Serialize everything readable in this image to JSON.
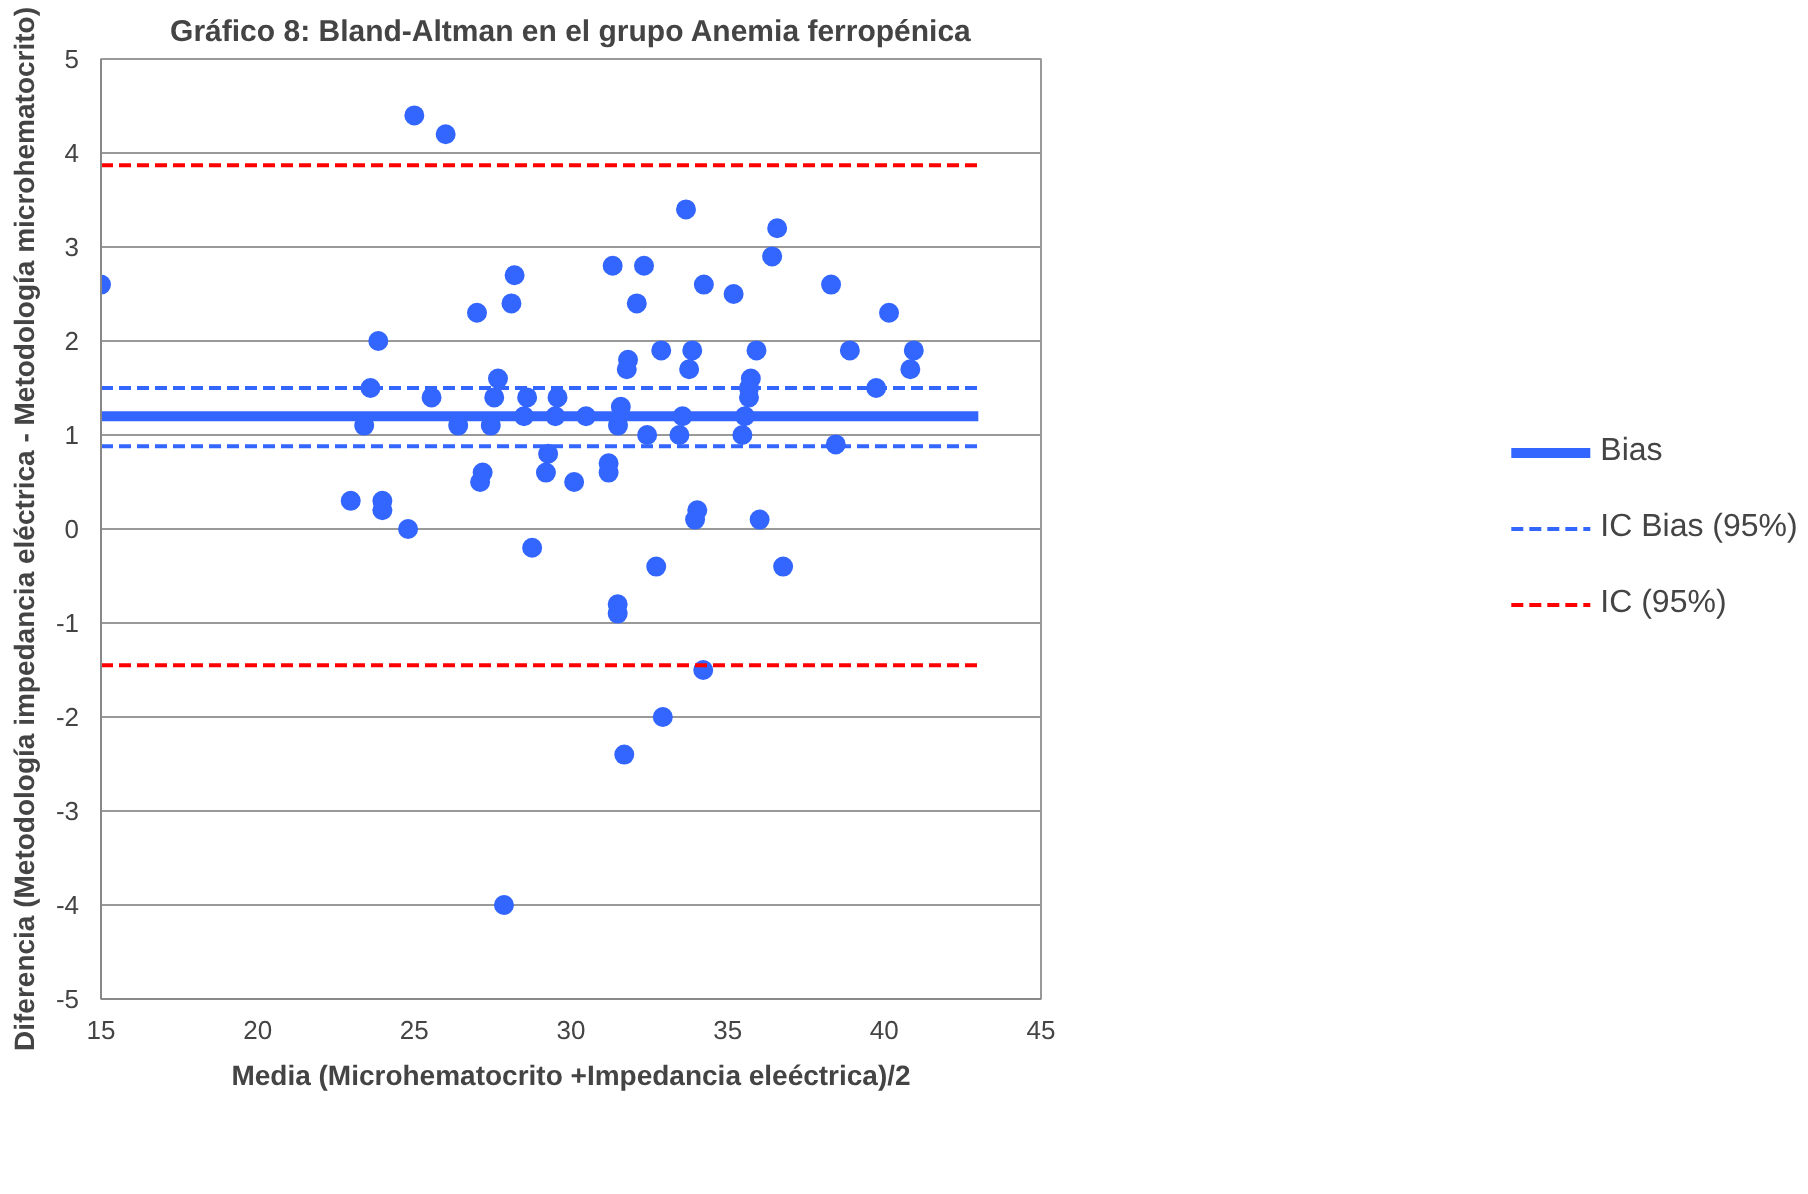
{
  "chart_data": {
    "type": "scatter",
    "title": "Gráfico 8: Bland-Altman en el grupo Anemia ferropénica",
    "xlabel": "Media (Microhematocrito +Impedancia eleéctrica)/2",
    "ylabel": "Diferencia (Metodología impedancia eléctrica - Metodología microhematocrito)",
    "xlim": [
      15,
      45
    ],
    "xticks": [
      15,
      20,
      25,
      30,
      35,
      40,
      45
    ],
    "ylim": [
      -5,
      5
    ],
    "yticks": [
      -5,
      -4,
      -3,
      -2,
      -1,
      0,
      1,
      2,
      3,
      4,
      5
    ],
    "grid": "y",
    "legend": "right",
    "series": [
      {
        "color": "#3366ff",
        "marker": "circle",
        "x": [
          15.0,
          25.0,
          26.0,
          27.0,
          28.2,
          28.1,
          23.85,
          23.6,
          25.55,
          27.67,
          27.55,
          28.6,
          29.57,
          23.4,
          26.4,
          27.44,
          28.5,
          29.5,
          29.27,
          29.2,
          27.18,
          27.1,
          30.1,
          22.97,
          23.98,
          23.98,
          24.8,
          28.76,
          33.67,
          36.58,
          36.42,
          31.33,
          32.33,
          34.24,
          35.19,
          38.3,
          32.1,
          40.15,
          32.88,
          33.87,
          35.92,
          38.9,
          40.94,
          31.82,
          31.78,
          33.77,
          40.83,
          35.74,
          35.68,
          39.74,
          35.68,
          31.59,
          30.48,
          31.5,
          33.56,
          35.55,
          32.43,
          33.46,
          35.47,
          38.45,
          31.2,
          31.2,
          34.03,
          33.96,
          36.02,
          32.72,
          36.77,
          31.49,
          31.49,
          34.22,
          32.93,
          31.7,
          27.86
        ],
        "values": [
          2.6,
          4.4,
          4.2,
          2.3,
          2.7,
          2.4,
          2.0,
          1.5,
          1.4,
          1.6,
          1.4,
          1.4,
          1.4,
          1.1,
          1.1,
          1.1,
          1.2,
          1.2,
          0.8,
          0.6,
          0.6,
          0.5,
          0.5,
          0.3,
          0.3,
          0.2,
          0.0,
          -0.2,
          3.4,
          3.2,
          2.9,
          2.8,
          2.8,
          2.6,
          2.5,
          2.6,
          2.4,
          2.3,
          1.9,
          1.9,
          1.9,
          1.9,
          1.9,
          1.8,
          1.7,
          1.7,
          1.7,
          1.6,
          1.5,
          1.5,
          1.4,
          1.3,
          1.2,
          1.1,
          1.2,
          1.2,
          1.0,
          1.0,
          1.0,
          0.9,
          0.7,
          0.6,
          0.2,
          0.1,
          0.1,
          -0.4,
          -0.4,
          -0.8,
          -0.9,
          -1.5,
          -2.0,
          -2.4,
          -4.0
        ]
      },
      {
        "type": "line",
        "name": "Bias",
        "color": "#3366ff",
        "line_style": "solid",
        "x": [
          15,
          43
        ],
        "values": [
          1.2,
          1.2
        ]
      },
      {
        "type": "line",
        "name": "IC Bias (95%)",
        "color": "#3366ff",
        "line_style": "dashed",
        "x": [
          15,
          43
        ],
        "values": [
          1.5,
          1.5
        ]
      },
      {
        "type": "line",
        "color": "#3366ff",
        "line_style": "dashed",
        "x": [
          15,
          43
        ],
        "values": [
          0.88,
          0.88
        ]
      },
      {
        "type": "line",
        "name": "IC (95%)",
        "color": "#ff0000",
        "line_style": "dashed",
        "x": [
          15,
          43
        ],
        "values": [
          3.87,
          3.87
        ]
      },
      {
        "type": "line",
        "color": "#ff0000",
        "line_style": "dashed",
        "x": [
          15,
          43
        ],
        "values": [
          -1.45,
          -1.45
        ]
      }
    ]
  }
}
